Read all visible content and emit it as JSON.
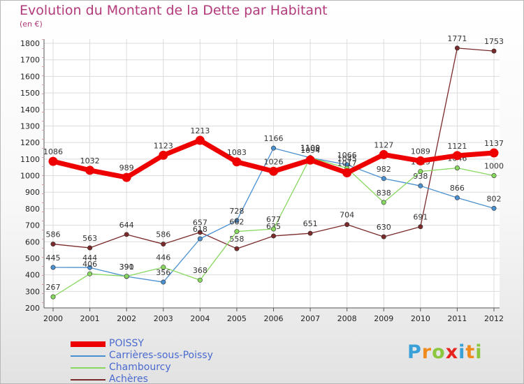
{
  "header": {
    "title": "Evolution du Montant de la Dette par Habitant",
    "unit": "(en €)"
  },
  "brand": {
    "letters": [
      "P",
      "r",
      "o",
      "x",
      "i",
      "t",
      "i"
    ],
    "colors": [
      "#3aa1d8",
      "#f08a1c",
      "#8cc63f",
      "#e8231f",
      "#3aa1d8",
      "#f08a1c",
      "#8cc63f"
    ]
  },
  "chart_data": {
    "type": "line",
    "title": "Evolution du Montant de la Dette par Habitant",
    "ylabel": "(en €)",
    "xlabel": "",
    "ylim": [
      200,
      1800
    ],
    "yticks": [
      200,
      300,
      400,
      500,
      600,
      700,
      800,
      900,
      1000,
      1100,
      1200,
      1300,
      1400,
      1500,
      1600,
      1700,
      1800
    ],
    "categories": [
      "2000",
      "2001",
      "2002",
      "2003",
      "2004",
      "2005",
      "2006",
      "2007",
      "2008",
      "2009",
      "2010",
      "2011",
      "2012"
    ],
    "grid": true,
    "series": [
      {
        "name": "POISSY",
        "color": "#ee0000",
        "values": [
          1086,
          1032,
          989,
          1123,
          1213,
          1083,
          1026,
          1094,
          1017,
          1127,
          1089,
          1121,
          1137
        ],
        "labels": [
          "1086",
          "1032",
          "989",
          "1123",
          "1213",
          "1083",
          "1026",
          "1094",
          "1017",
          "1127",
          "1089",
          "1121",
          "1137"
        ]
      },
      {
        "name": "Carrières-sous-Poissy",
        "color": "#4a8fd0",
        "values": [
          445,
          444,
          390,
          356,
          618,
          728,
          1166,
          1108,
          1066,
          982,
          938,
          866,
          802
        ],
        "labels": [
          "445",
          "444",
          "390",
          "356",
          "618",
          "728",
          "1166",
          "1108",
          "1066",
          "982",
          "938",
          "866",
          "802"
        ]
      },
      {
        "name": "Chambourcy",
        "color": "#88d860",
        "values": [
          267,
          406,
          391,
          446,
          368,
          662,
          677,
          1109,
          1045,
          838,
          1025,
          1046,
          1000
        ],
        "labels": [
          "267",
          "406",
          "391",
          "446",
          "368",
          "662",
          "677",
          "1109",
          "1045",
          "838",
          "1025",
          "1046",
          "1000"
        ]
      },
      {
        "name": "Achères",
        "color": "#7a2a2a",
        "values": [
          586,
          563,
          644,
          586,
          657,
          558,
          635,
          651,
          704,
          630,
          691,
          1771,
          1753
        ],
        "labels": [
          "586",
          "563",
          "644",
          "586",
          "657",
          "558",
          "635",
          "651",
          "704",
          "630",
          "691",
          "1771",
          "1753"
        ]
      }
    ]
  }
}
